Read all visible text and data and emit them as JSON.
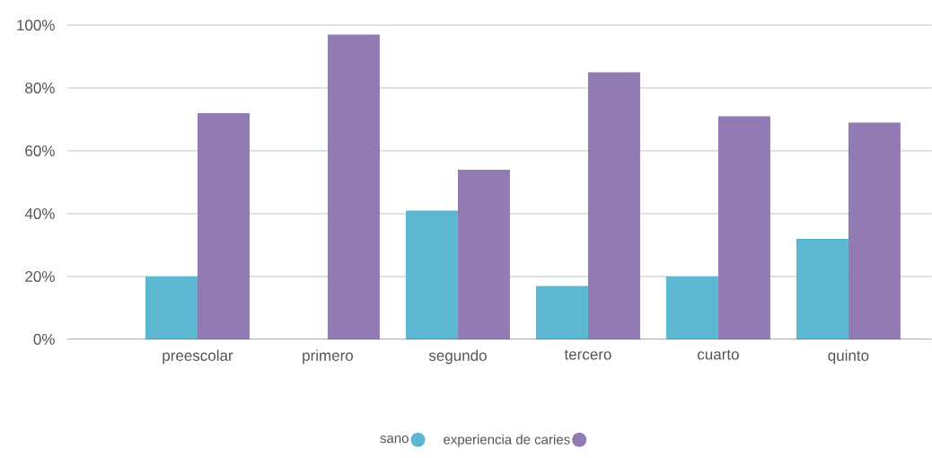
{
  "chart_data": {
    "type": "bar",
    "categories": [
      "preescolar",
      "primero",
      "segundo",
      "tercero",
      "cuarto",
      "quinto"
    ],
    "series": [
      {
        "name": "sano",
        "color": "#5bb8d0",
        "values": [
          20,
          0,
          41,
          17,
          20,
          32
        ]
      },
      {
        "name": "experiencia de caries",
        "color": "#927bb2",
        "values": [
          72,
          97,
          54,
          85,
          71,
          69
        ]
      }
    ],
    "ylim": [
      0,
      100
    ],
    "yticks": [
      {
        "value": 0,
        "label": "0%"
      },
      {
        "value": 20,
        "label": "20%"
      },
      {
        "value": 40,
        "label": "40%"
      },
      {
        "value": 60,
        "label": "60%"
      },
      {
        "value": 80,
        "label": "80%"
      },
      {
        "value": 100,
        "label": "100%"
      }
    ],
    "grid": "y",
    "legend": "bottom"
  }
}
